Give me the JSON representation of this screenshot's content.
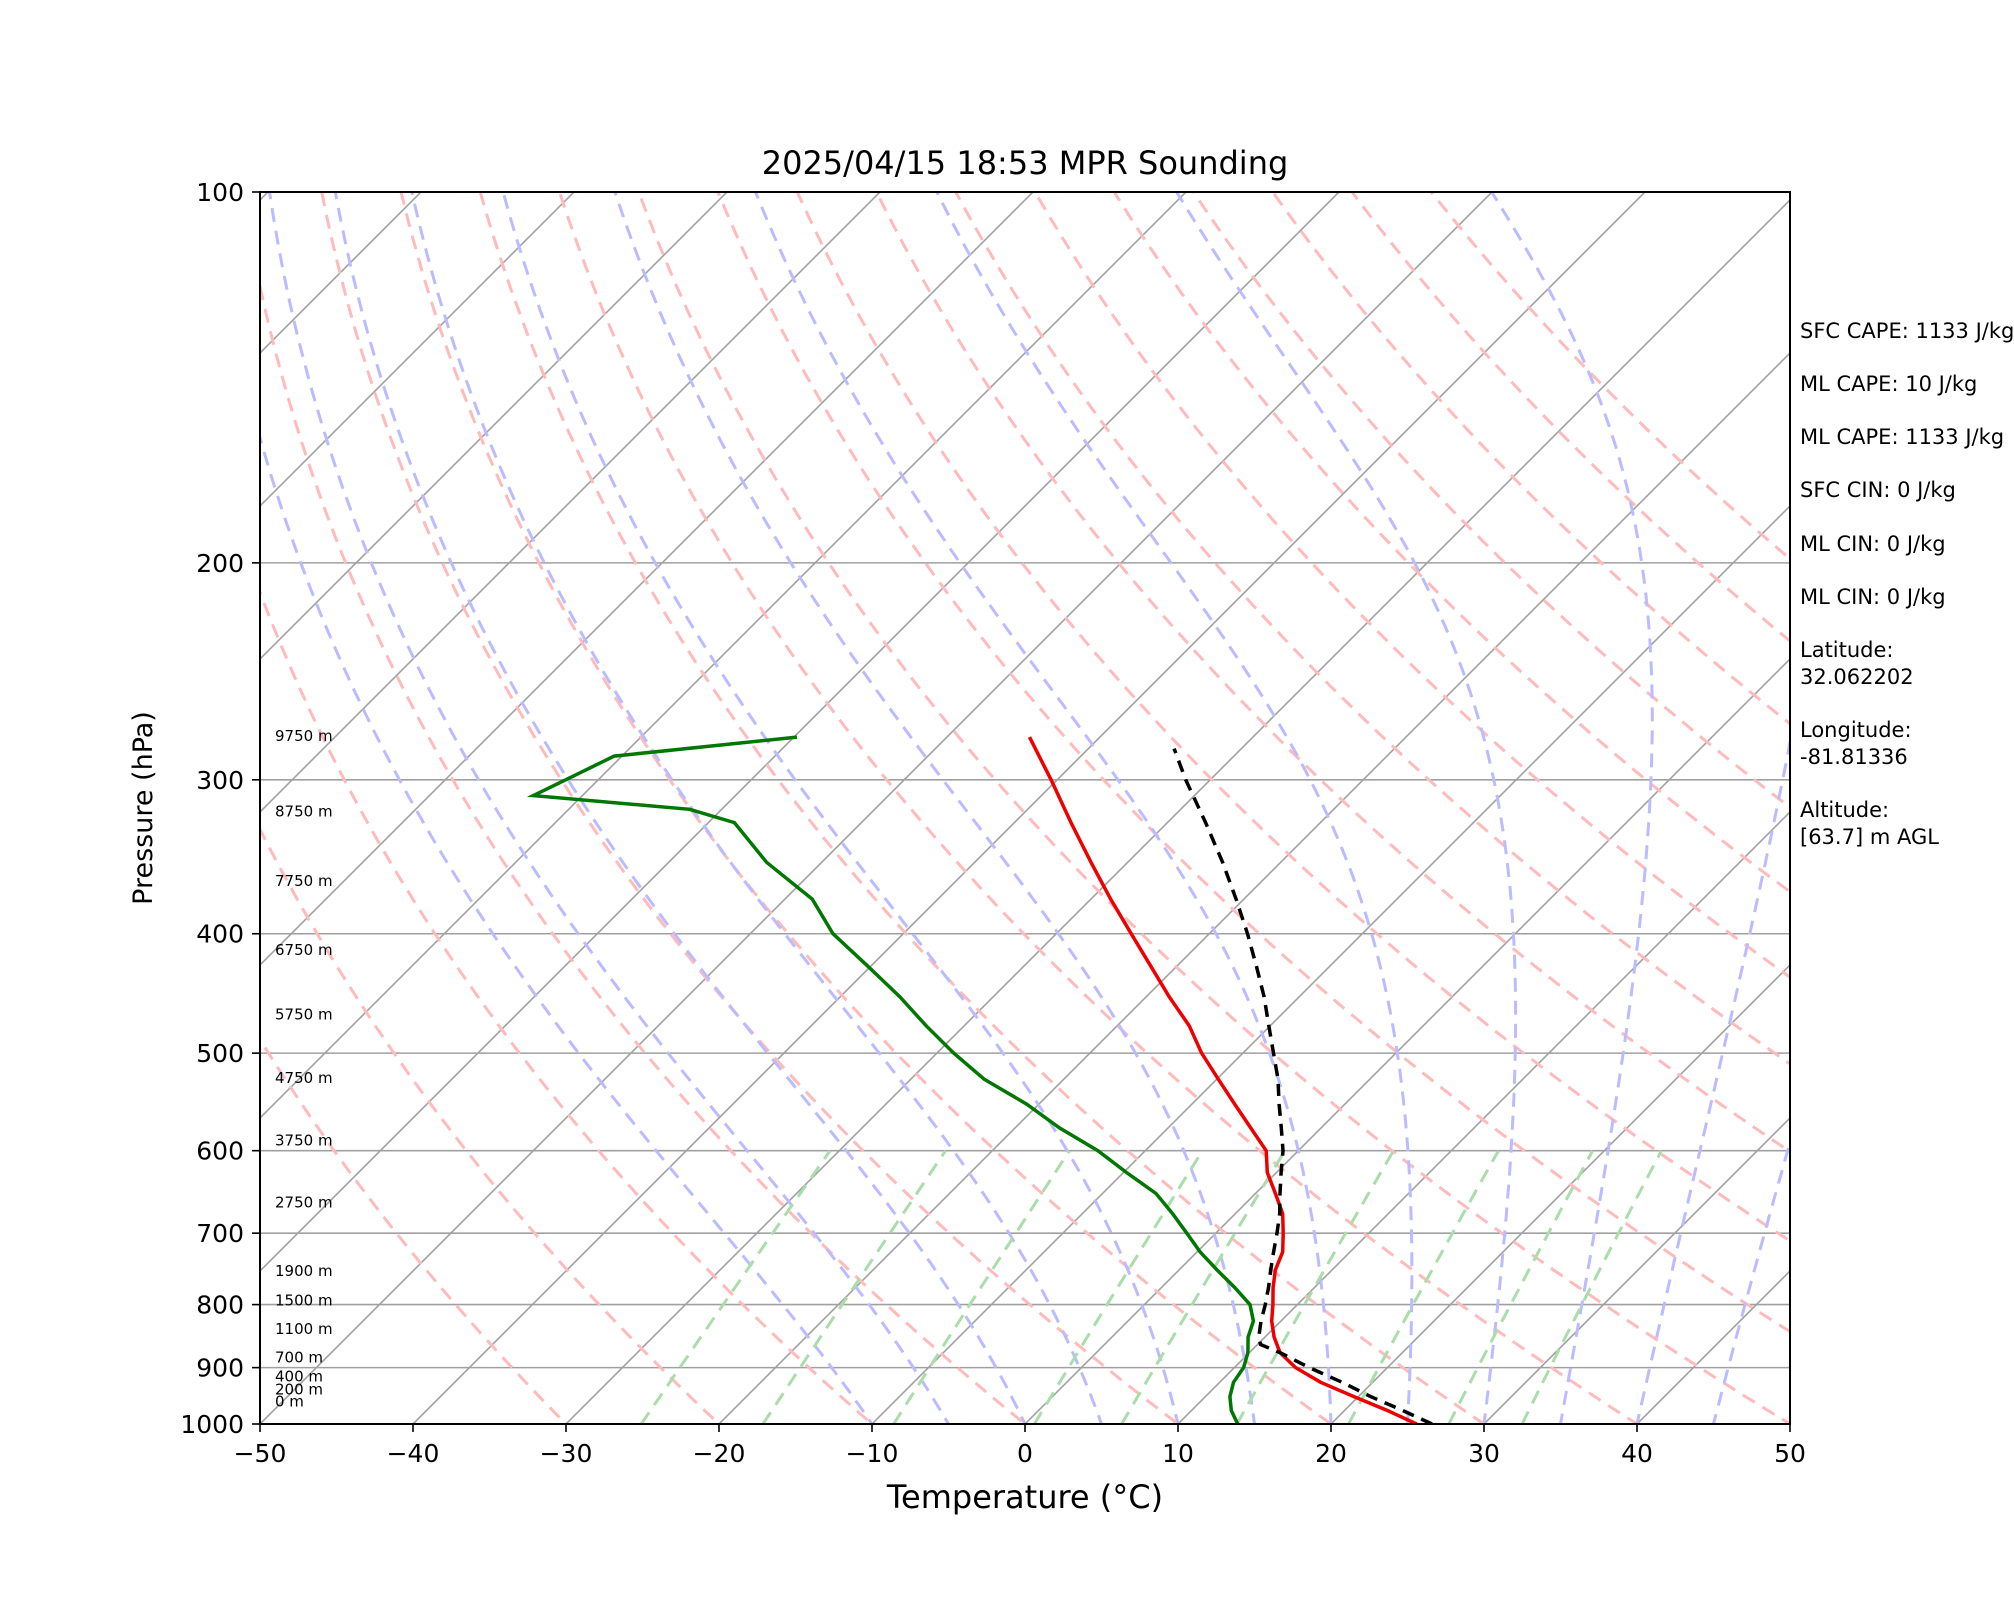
{
  "chart_data": {
    "type": "skew-t",
    "title": "2025/04/15 18:53 MPR Sounding",
    "xlabel": "Temperature (°C)",
    "ylabel": "Pressure (hPa)",
    "xlim": [
      -50,
      50
    ],
    "ylim_hpa": [
      1000,
      100
    ],
    "y_scale": "log",
    "x_ticks": [
      "−50",
      "−40",
      "−30",
      "−20",
      "−10",
      "0",
      "10",
      "20",
      "30",
      "40",
      "50"
    ],
    "y_ticks": [
      "100",
      "200",
      "300",
      "400",
      "500",
      "600",
      "700",
      "800",
      "900",
      "1000"
    ],
    "grid": true,
    "temperature": {
      "color": "#ee0000",
      "pressure": [
        1000,
        975,
        950,
        925,
        900,
        875,
        850,
        825,
        800,
        775,
        750,
        725,
        700,
        675,
        650,
        625,
        600,
        575,
        550,
        525,
        500,
        475,
        450,
        425,
        400,
        375,
        350,
        325,
        300,
        277
      ],
      "values": [
        25.6,
        22.8,
        19.7,
        16.6,
        14.0,
        12.0,
        10.6,
        9.4,
        8.4,
        7.3,
        6.3,
        5.6,
        4.4,
        3.1,
        1.3,
        -0.6,
        -2.1,
        -4.6,
        -7.2,
        -9.9,
        -12.7,
        -15.3,
        -18.5,
        -21.7,
        -25.1,
        -28.7,
        -32.4,
        -36.3,
        -40.4,
        -44.6
      ]
    },
    "dewpoint": {
      "color": "#007700",
      "pressure": [
        1000,
        975,
        950,
        925,
        900,
        875,
        850,
        825,
        800,
        775,
        750,
        725,
        700,
        675,
        650,
        625,
        600,
        575,
        550,
        525,
        500,
        475,
        450,
        425,
        400,
        375,
        350,
        325,
        317,
        309,
        287,
        277
      ],
      "values": [
        13.9,
        12.6,
        11.6,
        10.9,
        10.6,
        9.9,
        8.9,
        8.2,
        6.9,
        4.8,
        2.5,
        0.2,
        -1.9,
        -4.1,
        -6.5,
        -9.8,
        -13.1,
        -17.1,
        -20.8,
        -25.2,
        -28.9,
        -32.5,
        -36.1,
        -40.2,
        -44.6,
        -48.2,
        -53.6,
        -58.3,
        -62.1,
        -73.2,
        -70.5,
        -59.8
      ]
    },
    "parcel_profile": {
      "color": "#000000",
      "style": "dashed",
      "pressure": [
        1000,
        975,
        950,
        925,
        900,
        875,
        862,
        850,
        825,
        800,
        775,
        750,
        725,
        700,
        675,
        650,
        625,
        600,
        575,
        550,
        525,
        500,
        475,
        450,
        425,
        400,
        375,
        350,
        325,
        300,
        283
      ],
      "values": [
        26.6,
        23.8,
        20.8,
        18.0,
        14.9,
        12.0,
        10.2,
        9.6,
        8.7,
        7.9,
        7.0,
        6.0,
        5.0,
        4.0,
        2.9,
        1.6,
        0.3,
        -1.0,
        -2.6,
        -4.3,
        -6.0,
        -8.0,
        -10.1,
        -12.3,
        -14.8,
        -17.5,
        -20.5,
        -23.8,
        -27.5,
        -31.6,
        -34.4
      ]
    },
    "height_labels": [
      "9750 m",
      "8750 m",
      "7750 m",
      "6750 m",
      "5750 m",
      "4750 m",
      "3750 m",
      "2750 m",
      "1900 m",
      "1500 m",
      "1100 m",
      "700 m",
      "400 m",
      "200 m",
      "0 m"
    ],
    "height_label_pressures": [
      277,
      319,
      363,
      413,
      466,
      525,
      590,
      662,
      753,
      795,
      839,
      885,
      917,
      939,
      961
    ],
    "dry_adiabats_thetas_c": [
      -30,
      -20,
      -10,
      0,
      10,
      20,
      30,
      40,
      50,
      60,
      70,
      80,
      90,
      100,
      110,
      120,
      130,
      140,
      150
    ],
    "moist_adiabats_start_c": [
      -10,
      -5,
      0,
      5,
      10,
      15,
      20,
      25,
      30,
      35,
      40,
      45
    ],
    "mixing_ratio_lines_gkg": [
      0.5,
      1,
      2,
      4,
      6,
      10,
      16,
      24,
      32
    ],
    "colors": {
      "isotherm": "#a0a0a0",
      "isobar": "#a0a0a0",
      "dry_adiabat": "#ffbbbb",
      "moist_adiabat": "#bbbbff",
      "mixing_ratio": "#aaddaa"
    }
  },
  "stats": {
    "sfc_cape": "SFC CAPE: 1133 J/kg",
    "ml_cape_1": "ML CAPE: 10 J/kg",
    "ml_cape_2": "ML CAPE: 1133 J/kg",
    "sfc_cin": "SFC CIN: 0 J/kg",
    "ml_cin_1": "ML CIN: 0 J/kg",
    "ml_cin_2": "ML CIN: 0 J/kg",
    "latitude_label": "Latitude:",
    "latitude_value": "32.062202",
    "longitude_label": "Longitude:",
    "longitude_value": "-81.81336",
    "altitude_label": "Altitude:",
    "altitude_value": "[63.7] m AGL"
  }
}
